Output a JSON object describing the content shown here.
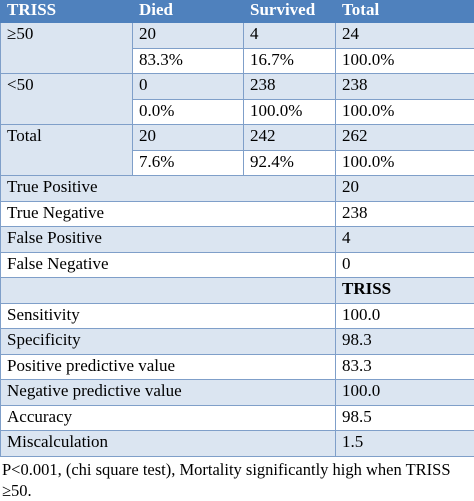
{
  "table": {
    "header": [
      "TRISS",
      "Died",
      "Survived",
      "Total"
    ],
    "groups": [
      {
        "label": "≥50",
        "rows": [
          [
            "20",
            "4",
            "24"
          ],
          [
            "83.3%",
            "16.7%",
            "100.0%"
          ]
        ]
      },
      {
        "label": "<50",
        "rows": [
          [
            "0",
            "238",
            "238"
          ],
          [
            "0.0%",
            "100.0%",
            "100.0%"
          ]
        ]
      },
      {
        "label": "Total",
        "rows": [
          [
            "20",
            "242",
            "262"
          ],
          [
            "7.6%",
            "92.4%",
            "100.0%"
          ]
        ]
      }
    ],
    "counts": [
      [
        "True Positive",
        "20"
      ],
      [
        "True Negative",
        "238"
      ],
      [
        "False Positive",
        "4"
      ],
      [
        "False Negative",
        "0"
      ]
    ],
    "subheader": "TRISS",
    "measures": [
      [
        "Sensitivity",
        "100.0"
      ],
      [
        "Specificity",
        "98.3"
      ],
      [
        "Positive predictive value",
        "83.3"
      ],
      [
        "Negative predictive value",
        "100.0"
      ],
      [
        "Accuracy",
        "98.5"
      ],
      [
        "Miscalculation",
        "1.5"
      ]
    ]
  },
  "footnote": "P<0.001, (chi square test), Mortality significantly high when TRISS ≥50."
}
